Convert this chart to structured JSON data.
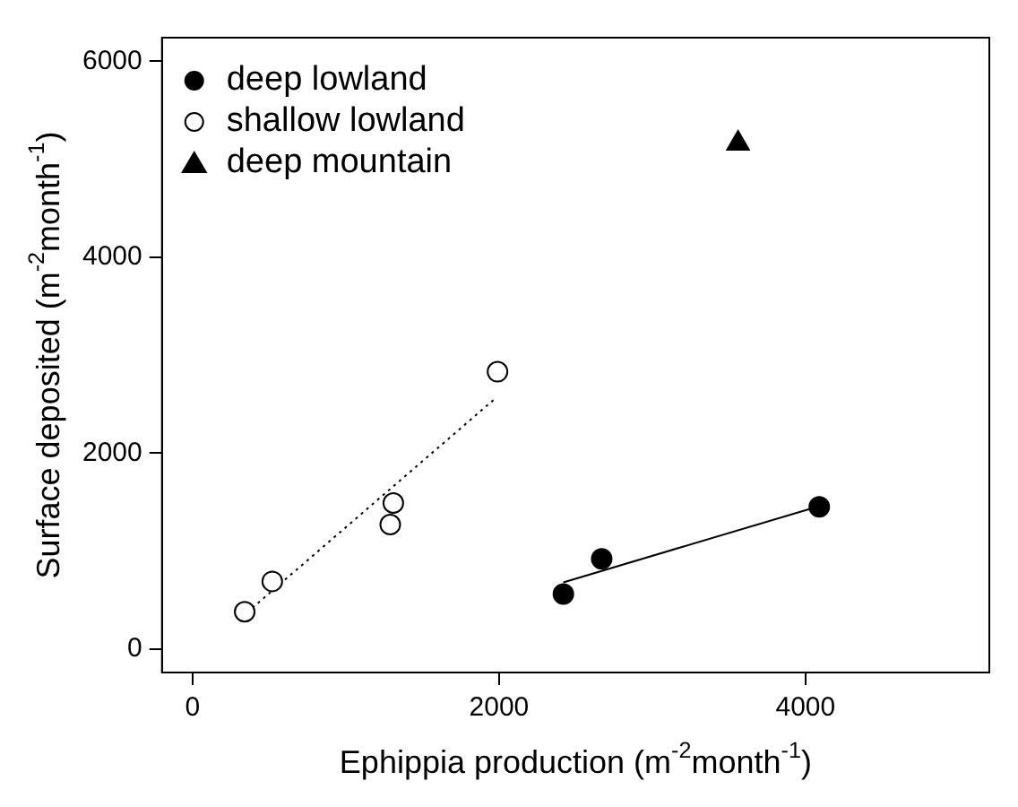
{
  "chart_data": {
    "type": "scatter",
    "xlabel": "Ephippia production (m$^{-2}$month$^{-1}$)",
    "ylabel": "Surface deposited (m$^{-2}$month$^{-1}$)",
    "xlim": [
      -200,
      5200
    ],
    "xticks": [
      0,
      2000,
      4000
    ],
    "ylim": [
      -240,
      6240
    ],
    "yticks": [
      0,
      2000,
      4000,
      6000
    ],
    "grid": false,
    "legend": "top left",
    "series": [
      {
        "name": "deep lowland",
        "color": "#000000",
        "marker": "circle",
        "x": [
          2420,
          2670,
          4090
        ],
        "values": [
          560,
          920,
          1450
        ]
      },
      {
        "name": "shallow lowland",
        "color": "#ffffff",
        "marker": "circle",
        "x": [
          340,
          520,
          1310,
          1290,
          1990
        ],
        "values": [
          380,
          690,
          1490,
          1270,
          2830
        ]
      },
      {
        "name": "deep mountain",
        "color": "#000000",
        "marker": "triangle",
        "x": [
          3560
        ],
        "values": [
          5160
        ]
      },
      {
        "type": "line",
        "color": "#000000",
        "marker": "none",
        "line_style": "solid",
        "x": [
          2420,
          4050
        ],
        "values": [
          680,
          1440
        ]
      },
      {
        "type": "line",
        "color": "#000000",
        "marker": "none",
        "line_style": "dotted",
        "x": [
          390,
          1970
        ],
        "values": [
          420,
          2550
        ]
      }
    ]
  }
}
